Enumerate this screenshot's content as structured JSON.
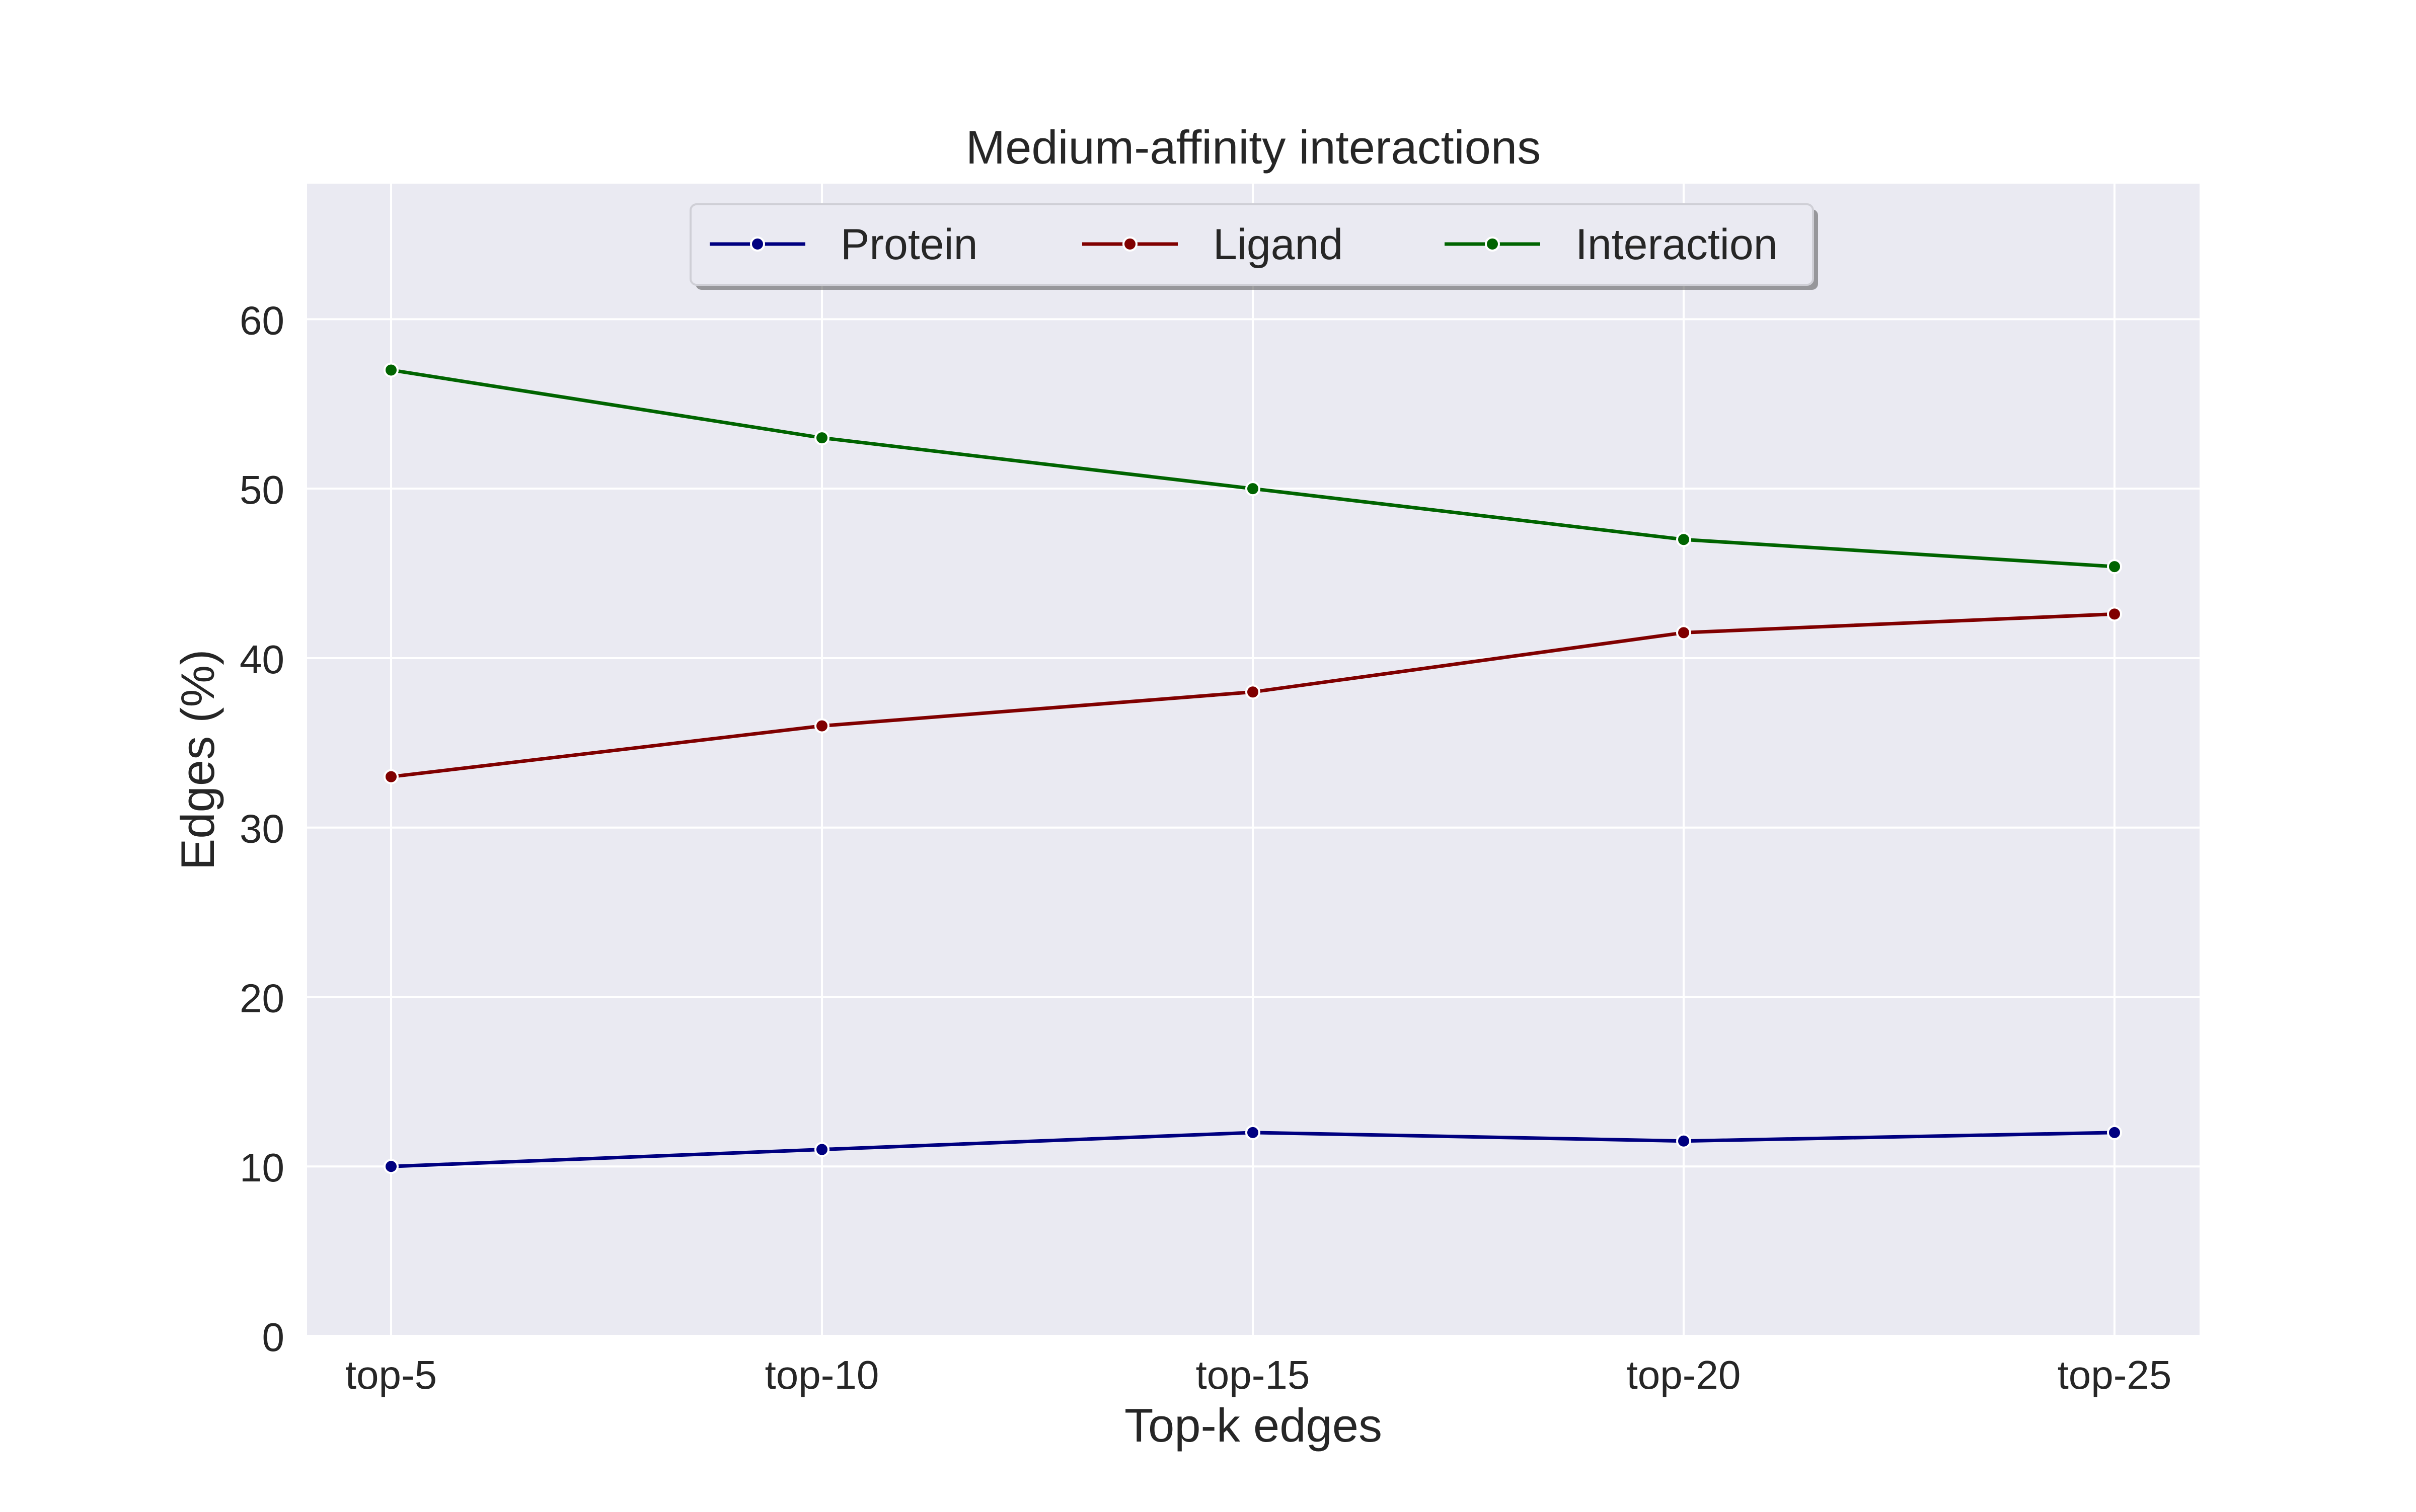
{
  "chart_data": {
    "type": "line",
    "title": "Medium-affinity interactions",
    "xlabel": "Top-k edges",
    "ylabel": "Edges (%)",
    "categories": [
      "top-5",
      "top-10",
      "top-15",
      "top-20",
      "top-25"
    ],
    "ylim": [
      0,
      68
    ],
    "yticks": [
      0,
      10,
      20,
      30,
      40,
      50,
      60
    ],
    "grid": true,
    "legend_position": "top-center",
    "series": [
      {
        "name": "Protein",
        "color": "#000080",
        "values": [
          10,
          11,
          12,
          11.5,
          12
        ]
      },
      {
        "name": "Ligand",
        "color": "#800000",
        "values": [
          33,
          36,
          38,
          41.5,
          42.6
        ]
      },
      {
        "name": "Interaction",
        "color": "#006400",
        "values": [
          57,
          53,
          50,
          47,
          45.4
        ]
      }
    ],
    "colors": {
      "plot_background": "#EAEAF2",
      "grid": "#FFFFFF",
      "text": "#262626"
    }
  }
}
